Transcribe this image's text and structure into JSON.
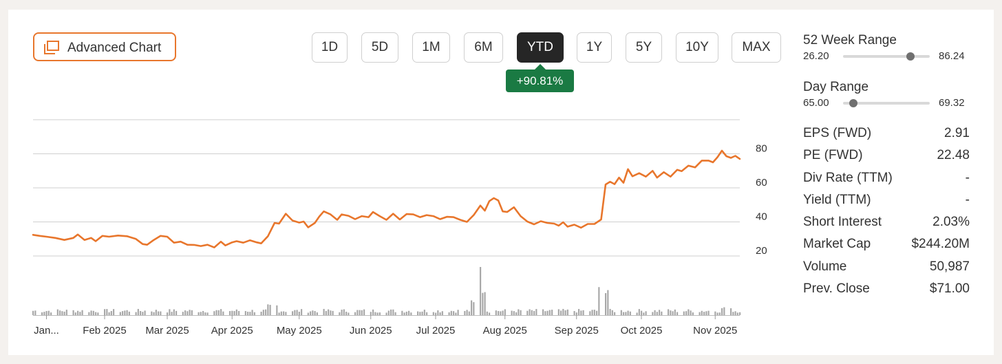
{
  "toolbar": {
    "advanced_chart_label": "Advanced Chart",
    "ranges": [
      "1D",
      "5D",
      "1M",
      "6M",
      "YTD",
      "1Y",
      "5Y",
      "10Y",
      "MAX"
    ],
    "active_range": "YTD",
    "change_badge": "+90.81%"
  },
  "colors": {
    "accent": "#e8762c",
    "positive": "#1a7a43",
    "active_button": "#262626",
    "volume": "#a8a8a8",
    "grid": "#cfcfcf"
  },
  "stats": {
    "week52": {
      "title": "52 Week Range",
      "low": "26.20",
      "high": "86.24",
      "position": 0.78
    },
    "day": {
      "title": "Day Range",
      "low": "65.00",
      "high": "69.32",
      "position": 0.12
    },
    "rows": [
      {
        "label": "EPS (FWD)",
        "value": "2.91"
      },
      {
        "label": "PE (FWD)",
        "value": "22.48"
      },
      {
        "label": "Div Rate (TTM)",
        "value": "-"
      },
      {
        "label": "Yield (TTM)",
        "value": "-"
      },
      {
        "label": "Short Interest",
        "value": "2.03%"
      },
      {
        "label": "Market Cap",
        "value": "$244.20M"
      },
      {
        "label": "Volume",
        "value": "50,987"
      },
      {
        "label": "Prev. Close",
        "value": "$71.00"
      }
    ]
  },
  "chart_data": {
    "type": "line",
    "title": "",
    "xlabel": "",
    "ylabel": "",
    "ylim": [
      20,
      100
    ],
    "yticks": [
      20,
      40,
      60,
      80
    ],
    "grid": true,
    "x_start": "2025-01-02",
    "x_end": "2025-11-14",
    "x_ticks": [
      {
        "label": "Jan...",
        "date": "2025-01-08"
      },
      {
        "label": "Feb 2025",
        "date": "2025-02-03"
      },
      {
        "label": "Mar 2025",
        "date": "2025-03-03"
      },
      {
        "label": "Apr 2025",
        "date": "2025-04-01"
      },
      {
        "label": "May 2025",
        "date": "2025-05-01"
      },
      {
        "label": "Jun 2025",
        "date": "2025-06-02"
      },
      {
        "label": "Jul 2025",
        "date": "2025-07-01"
      },
      {
        "label": "Aug 2025",
        "date": "2025-08-01"
      },
      {
        "label": "Sep 2025",
        "date": "2025-09-02"
      },
      {
        "label": "Oct 2025",
        "date": "2025-10-01"
      },
      {
        "label": "Nov 2025",
        "date": "2025-11-03"
      }
    ],
    "series": [
      {
        "color": "#e8762c",
        "points": [
          [
            "2025-01-02",
            32.4
          ],
          [
            "2025-01-05",
            31.8
          ],
          [
            "2025-01-08",
            31.3
          ],
          [
            "2025-01-12",
            30.6
          ],
          [
            "2025-01-16",
            29.4
          ],
          [
            "2025-01-20",
            30.6
          ],
          [
            "2025-01-22",
            32.6
          ],
          [
            "2025-01-25",
            29.4
          ],
          [
            "2025-01-28",
            30.6
          ],
          [
            "2025-01-30",
            28.7
          ],
          [
            "2025-02-02",
            31.8
          ],
          [
            "2025-02-05",
            31.3
          ],
          [
            "2025-02-09",
            32.0
          ],
          [
            "2025-02-13",
            31.6
          ],
          [
            "2025-02-17",
            30.0
          ],
          [
            "2025-02-20",
            27.0
          ],
          [
            "2025-02-22",
            26.6
          ],
          [
            "2025-02-25",
            29.4
          ],
          [
            "2025-02-28",
            31.8
          ],
          [
            "2025-03-03",
            31.3
          ],
          [
            "2025-03-06",
            27.8
          ],
          [
            "2025-03-09",
            28.4
          ],
          [
            "2025-03-12",
            26.6
          ],
          [
            "2025-03-15",
            26.5
          ],
          [
            "2025-03-18",
            25.8
          ],
          [
            "2025-03-21",
            26.6
          ],
          [
            "2025-03-24",
            25.0
          ],
          [
            "2025-03-27",
            28.4
          ],
          [
            "2025-03-29",
            26.2
          ],
          [
            "2025-04-01",
            28.0
          ],
          [
            "2025-04-03",
            28.7
          ],
          [
            "2025-04-06",
            27.8
          ],
          [
            "2025-04-09",
            29.2
          ],
          [
            "2025-04-12",
            28.0
          ],
          [
            "2025-04-14",
            27.4
          ],
          [
            "2025-04-17",
            31.6
          ],
          [
            "2025-04-20",
            39.4
          ],
          [
            "2025-04-22",
            39.0
          ],
          [
            "2025-04-25",
            44.8
          ],
          [
            "2025-04-28",
            40.8
          ],
          [
            "2025-05-01",
            39.6
          ],
          [
            "2025-05-03",
            40.2
          ],
          [
            "2025-05-05",
            36.8
          ],
          [
            "2025-05-08",
            39.4
          ],
          [
            "2025-05-10",
            43.2
          ],
          [
            "2025-05-12",
            46.2
          ],
          [
            "2025-05-15",
            44.4
          ],
          [
            "2025-05-18",
            41.2
          ],
          [
            "2025-05-20",
            44.4
          ],
          [
            "2025-05-23",
            43.6
          ],
          [
            "2025-05-26",
            41.6
          ],
          [
            "2025-05-29",
            43.4
          ],
          [
            "2025-06-01",
            42.8
          ],
          [
            "2025-06-03",
            45.8
          ],
          [
            "2025-06-06",
            43.4
          ],
          [
            "2025-06-09",
            41.2
          ],
          [
            "2025-06-12",
            44.8
          ],
          [
            "2025-06-15",
            41.4
          ],
          [
            "2025-06-18",
            44.6
          ],
          [
            "2025-06-21",
            44.4
          ],
          [
            "2025-06-24",
            42.8
          ],
          [
            "2025-06-27",
            44.0
          ],
          [
            "2025-06-30",
            43.4
          ],
          [
            "2025-07-03",
            41.6
          ],
          [
            "2025-07-06",
            43.0
          ],
          [
            "2025-07-09",
            42.8
          ],
          [
            "2025-07-12",
            41.2
          ],
          [
            "2025-07-15",
            40.0
          ],
          [
            "2025-07-18",
            44.0
          ],
          [
            "2025-07-21",
            49.6
          ],
          [
            "2025-07-23",
            46.6
          ],
          [
            "2025-07-25",
            52.2
          ],
          [
            "2025-07-27",
            54.0
          ],
          [
            "2025-07-29",
            52.6
          ],
          [
            "2025-07-31",
            46.2
          ],
          [
            "2025-08-02",
            45.8
          ],
          [
            "2025-08-05",
            48.6
          ],
          [
            "2025-08-08",
            43.4
          ],
          [
            "2025-08-11",
            40.2
          ],
          [
            "2025-08-14",
            38.6
          ],
          [
            "2025-08-17",
            40.4
          ],
          [
            "2025-08-20",
            39.4
          ],
          [
            "2025-08-23",
            39.0
          ],
          [
            "2025-08-25",
            37.8
          ],
          [
            "2025-08-27",
            39.8
          ],
          [
            "2025-08-29",
            37.2
          ],
          [
            "2025-09-01",
            38.4
          ],
          [
            "2025-09-04",
            36.6
          ],
          [
            "2025-09-07",
            38.8
          ],
          [
            "2025-09-10",
            38.8
          ],
          [
            "2025-09-13",
            41.4
          ],
          [
            "2025-09-15",
            62.0
          ],
          [
            "2025-09-17",
            63.6
          ],
          [
            "2025-09-19",
            62.2
          ],
          [
            "2025-09-21",
            66.0
          ],
          [
            "2025-09-23",
            63.0
          ],
          [
            "2025-09-25",
            71.0
          ],
          [
            "2025-09-27",
            66.8
          ],
          [
            "2025-09-30",
            68.6
          ],
          [
            "2025-10-03",
            66.6
          ],
          [
            "2025-10-06",
            70.0
          ],
          [
            "2025-10-08",
            66.0
          ],
          [
            "2025-10-11",
            69.2
          ],
          [
            "2025-10-14",
            66.6
          ],
          [
            "2025-10-17",
            70.6
          ],
          [
            "2025-10-19",
            69.8
          ],
          [
            "2025-10-22",
            73.0
          ],
          [
            "2025-10-25",
            72.0
          ],
          [
            "2025-10-28",
            76.0
          ],
          [
            "2025-10-31",
            76.0
          ],
          [
            "2025-11-02",
            75.0
          ],
          [
            "2025-11-04",
            78.0
          ],
          [
            "2025-11-06",
            81.8
          ],
          [
            "2025-11-08",
            78.6
          ],
          [
            "2025-11-10",
            77.6
          ],
          [
            "2025-11-12",
            78.8
          ],
          [
            "2025-11-14",
            77.0
          ]
        ]
      }
    ],
    "volume": {
      "color": "#a8a8a8",
      "unit": "relative",
      "spikes": [
        {
          "date": "2025-04-19",
          "value": 0.38
        },
        {
          "date": "2025-07-19",
          "value": 0.55
        },
        {
          "date": "2025-07-21",
          "value": 1.0
        },
        {
          "date": "2025-09-14",
          "value": 1.0
        },
        {
          "date": "2025-11-08",
          "value": 0.28
        }
      ]
    }
  }
}
